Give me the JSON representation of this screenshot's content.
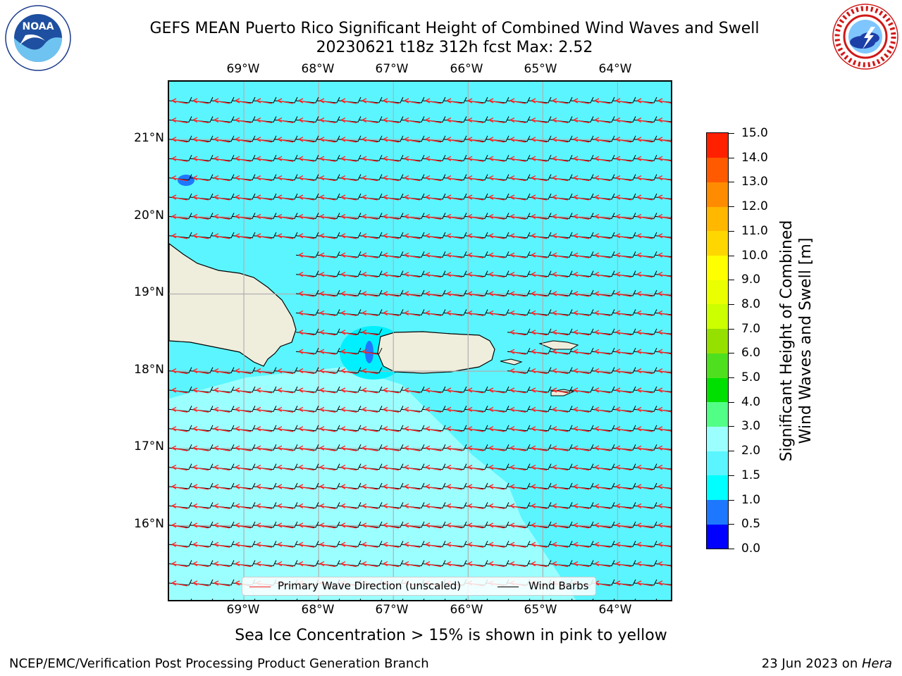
{
  "header": {
    "title_line1": "GEFS MEAN Puerto Rico Significant Height of Combined Wind Waves and Swell",
    "title_line2": "20230621 t18z 312h fcst   Max: 2.52"
  },
  "logos": {
    "left": "noaa-logo",
    "right": "nws-logo"
  },
  "map": {
    "lon_labels": [
      "69°W",
      "68°W",
      "67°W",
      "66°W",
      "65°W",
      "64°W"
    ],
    "lat_labels": [
      "21°N",
      "20°N",
      "19°N",
      "18°N",
      "17°N",
      "16°N"
    ],
    "lon_range": [
      -70.0,
      -63.25
    ],
    "lat_range": [
      15.0,
      21.75
    ],
    "colors": {
      "sea_main": "#5af5ff",
      "sea_light": "#9cffff",
      "sea_cyan": "#00f0ff",
      "sea_deep": "#1e78ff",
      "land": "#efeddc",
      "wave_arrow": "#ff2020",
      "wind_barb": "#000000",
      "grid": "#b0b0b0"
    }
  },
  "legend": {
    "wave_label": "Primary Wave Direction (unscaled)",
    "wind_label": "Wind Barbs"
  },
  "colorbar": {
    "title_line1": "Significant Height of Combined",
    "title_line2": "Wind Waves and Swell [m]",
    "tick_labels": [
      "0.0",
      "0.5",
      "1.0",
      "1.5",
      "2.0",
      "3.0",
      "4.0",
      "5.0",
      "6.0",
      "7.0",
      "8.0",
      "9.0",
      "10.0",
      "11.0",
      "12.0",
      "13.0",
      "14.0",
      "15.0"
    ],
    "segment_colors": [
      "#0000ff",
      "#1e78ff",
      "#00ffff",
      "#5af5ff",
      "#9cffff",
      "#52ff86",
      "#00e000",
      "#4ee01e",
      "#96e000",
      "#ccff00",
      "#eaff00",
      "#ffff00",
      "#ffd700",
      "#ffb700",
      "#ff8c00",
      "#ff5a00",
      "#ff2000"
    ]
  },
  "footer": {
    "note": "Sea Ice Concentration > 15% is shown in pink to yellow",
    "credit_left": "NCEP/EMC/Verification Post Processing Product Generation Branch",
    "date_text": "23 Jun 2023 on ",
    "machine": "Hera"
  }
}
